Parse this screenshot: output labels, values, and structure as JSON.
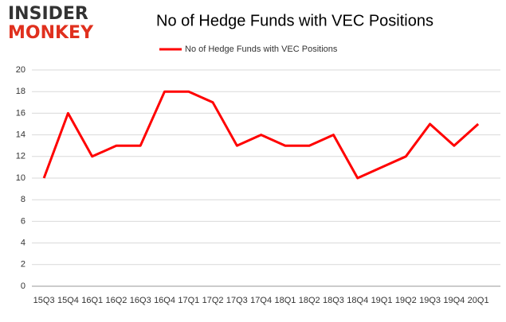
{
  "logo": {
    "top": "INSIDER",
    "bottom": "MONKEY"
  },
  "chart_data": {
    "type": "line",
    "title": "No of Hedge Funds with VEC Positions",
    "categories": [
      "15Q3",
      "15Q4",
      "16Q1",
      "16Q2",
      "16Q3",
      "16Q4",
      "17Q1",
      "17Q2",
      "17Q3",
      "17Q4",
      "18Q1",
      "18Q2",
      "18Q3",
      "18Q4",
      "19Q1",
      "19Q2",
      "19Q3",
      "19Q4",
      "20Q1"
    ],
    "series": [
      {
        "name": "No of Hedge Funds with VEC Positions",
        "color": "#ff0000",
        "values": [
          10,
          16,
          12,
          13,
          13,
          18,
          18,
          17,
          13,
          14,
          13,
          13,
          14,
          10,
          11,
          12,
          15,
          13,
          15
        ]
      }
    ],
    "ylim": [
      0,
      20
    ],
    "yticks": [
      0,
      2,
      4,
      6,
      8,
      10,
      12,
      14,
      16,
      18,
      20
    ],
    "grid": true,
    "legend": "top"
  }
}
